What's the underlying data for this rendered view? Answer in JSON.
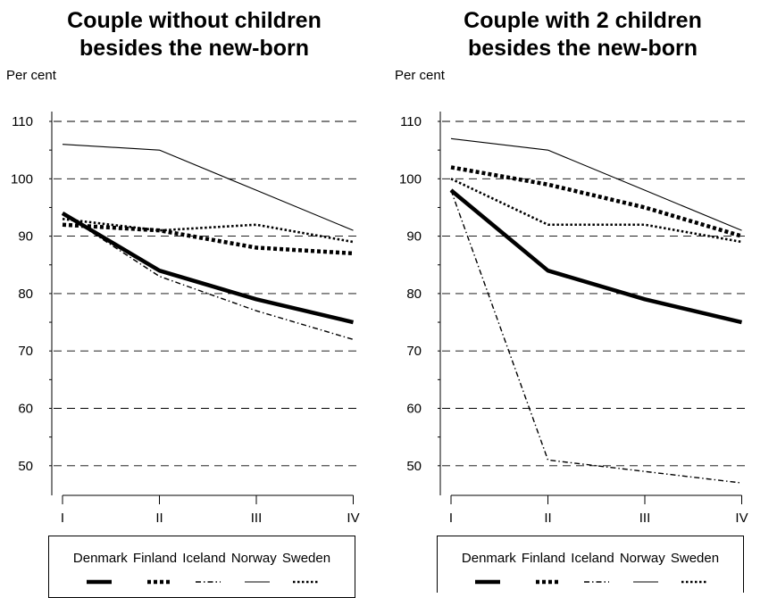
{
  "chart_data": [
    {
      "type": "line",
      "title": [
        "Couple without children",
        "besides the new-born"
      ],
      "ylabel": "Per cent",
      "categories": [
        "I",
        "II",
        "III",
        "IV"
      ],
      "ylim": [
        45,
        114
      ],
      "yticks": [
        50,
        60,
        70,
        80,
        90,
        100,
        110
      ],
      "ytick_labels": [
        "50",
        "60",
        "70",
        "80",
        "90",
        "100",
        "110"
      ],
      "grid": "dashed horizontal",
      "legend": "bottom",
      "series": [
        {
          "name": "Denmark",
          "style": "thick-solid",
          "values": [
            94,
            84,
            79,
            75
          ]
        },
        {
          "name": "Finland",
          "style": "thick-dashed",
          "values": [
            92,
            91,
            88,
            87
          ]
        },
        {
          "name": "Iceland",
          "style": "thin-dash-dot",
          "values": [
            94,
            83,
            77,
            72
          ]
        },
        {
          "name": "Norway",
          "style": "thin-solid",
          "values": [
            106,
            105,
            98,
            91
          ]
        },
        {
          "name": "Sweden",
          "style": "medium-dotted",
          "values": [
            93,
            91,
            92,
            89
          ]
        }
      ]
    },
    {
      "type": "line",
      "title": [
        "Couple with 2 children",
        "besides the new-born"
      ],
      "ylabel": "Per cent",
      "categories": [
        "I",
        "II",
        "III",
        "IV"
      ],
      "ylim": [
        45,
        114
      ],
      "yticks": [
        50,
        60,
        70,
        80,
        90,
        100,
        110
      ],
      "ytick_labels": [
        "50",
        "60",
        "70",
        "80",
        "90",
        "100",
        "110"
      ],
      "grid": "dashed horizontal",
      "legend": "bottom",
      "series": [
        {
          "name": "Denmark",
          "style": "thick-solid",
          "values": [
            98,
            84,
            79,
            75
          ]
        },
        {
          "name": "Finland",
          "style": "thick-dashed",
          "values": [
            102,
            99,
            95,
            90
          ]
        },
        {
          "name": "Iceland",
          "style": "thin-dash-dot",
          "values": [
            98,
            51,
            49,
            47
          ]
        },
        {
          "name": "Norway",
          "style": "thin-solid",
          "values": [
            107,
            105,
            98,
            91
          ]
        },
        {
          "name": "Sweden",
          "style": "medium-dotted",
          "values": [
            100,
            92,
            92,
            89
          ]
        }
      ]
    }
  ]
}
